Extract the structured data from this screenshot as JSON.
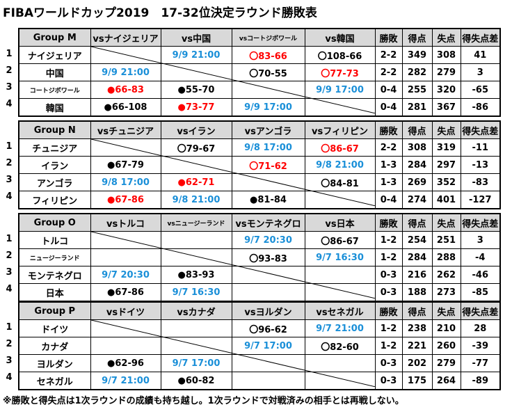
{
  "title": "FIBAワールドカップ2019　17-32位決定ラウンド勝敗表",
  "footer": "※勝敗と得失点は1次ラウンドの成績も持ち越し。1次ラウンドで対戦済みの相手とは再戦しない。",
  "colors": {
    "header_bg": "#d9d9d9",
    "scheduled": "#1a8fd8",
    "loss": "#ff0000",
    "win": "#000000"
  },
  "stat_headers": [
    "勝敗",
    "得点",
    "失点",
    "得失点差"
  ],
  "groups": [
    {
      "name": "Group M",
      "vs_headers": [
        "vsナイジェリア",
        "vs中国",
        "vsコートジボワール",
        "vs韓国"
      ],
      "rows": [
        {
          "rank": "1",
          "team": "ナイジェリア",
          "cells": [
            "",
            "9/9 21:00",
            "〇83-66",
            "〇108-66"
          ],
          "record": "2-2",
          "pf": "349",
          "pa": "308",
          "diff": "41"
        },
        {
          "rank": "2",
          "team": "中国",
          "cells": [
            "9/9 21:00",
            "",
            "〇70-55",
            "〇77-73"
          ],
          "record": "2-2",
          "pf": "282",
          "pa": "279",
          "diff": "3"
        },
        {
          "rank": "3",
          "team": "コートジボワール",
          "cells": [
            "●66-83",
            "●55-70",
            "",
            "9/9 17:00"
          ],
          "record": "0-4",
          "pf": "255",
          "pa": "320",
          "diff": "-65"
        },
        {
          "rank": "4",
          "team": "韓国",
          "cells": [
            "●66-108",
            "●73-77",
            "9/9 17:00",
            ""
          ],
          "record": "0-4",
          "pf": "281",
          "pa": "367",
          "diff": "-86"
        }
      ]
    },
    {
      "name": "Group N",
      "vs_headers": [
        "vsチュニジア",
        "vsイラン",
        "vsアンゴラ",
        "vsフィリピン"
      ],
      "rows": [
        {
          "rank": "1",
          "team": "チュニジア",
          "cells": [
            "",
            "〇79-67",
            "9/8 17:00",
            "〇86-67"
          ],
          "record": "2-2",
          "pf": "308",
          "pa": "319",
          "diff": "-11"
        },
        {
          "rank": "2",
          "team": "イラン",
          "cells": [
            "●67-79",
            "",
            "〇71-62",
            "9/8 21:00"
          ],
          "record": "1-3",
          "pf": "284",
          "pa": "297",
          "diff": "-13"
        },
        {
          "rank": "3",
          "team": "アンゴラ",
          "cells": [
            "9/8 17:00",
            "●62-71",
            "",
            "〇84-81"
          ],
          "record": "1-3",
          "pf": "269",
          "pa": "352",
          "diff": "-83"
        },
        {
          "rank": "4",
          "team": "フィリピン",
          "cells": [
            "●67-86",
            "9/8 21:00",
            "●81-84",
            ""
          ],
          "record": "0-4",
          "pf": "274",
          "pa": "401",
          "diff": "-127"
        }
      ]
    },
    {
      "name": "Group O",
      "vs_headers": [
        "vsトルコ",
        "vsニュージーランド",
        "vsモンテネグロ",
        "vs日本"
      ],
      "rows": [
        {
          "rank": "1",
          "team": "トルコ",
          "cells": [
            "",
            "",
            "9/7 20:30",
            "〇86-67"
          ],
          "record": "1-2",
          "pf": "254",
          "pa": "251",
          "diff": "3"
        },
        {
          "rank": "2",
          "team": "ニュージーランド",
          "cells": [
            "",
            "",
            "〇93-83",
            "9/7 16:30"
          ],
          "record": "1-2",
          "pf": "284",
          "pa": "288",
          "diff": "-4"
        },
        {
          "rank": "3",
          "team": "モンテネグロ",
          "cells": [
            "9/7 20:30",
            "●83-93",
            "",
            ""
          ],
          "record": "0-3",
          "pf": "216",
          "pa": "262",
          "diff": "-46"
        },
        {
          "rank": "4",
          "team": "日本",
          "cells": [
            "●67-86",
            "9/7 16:30",
            "",
            ""
          ],
          "record": "0-3",
          "pf": "188",
          "pa": "273",
          "diff": "-85"
        }
      ]
    },
    {
      "name": "Group P",
      "vs_headers": [
        "vsドイツ",
        "vsカナダ",
        "vsヨルダン",
        "vsセネガル"
      ],
      "rows": [
        {
          "rank": "1",
          "team": "ドイツ",
          "cells": [
            "",
            "",
            "〇96-62",
            "9/7 21:00"
          ],
          "record": "1-2",
          "pf": "238",
          "pa": "210",
          "diff": "28"
        },
        {
          "rank": "2",
          "team": "カナダ",
          "cells": [
            "",
            "",
            "9/7 17:00",
            "〇82-60"
          ],
          "record": "1-2",
          "pf": "221",
          "pa": "260",
          "diff": "-39"
        },
        {
          "rank": "3",
          "team": "ヨルダン",
          "cells": [
            "●62-96",
            "9/7 17:00",
            "",
            ""
          ],
          "record": "0-3",
          "pf": "202",
          "pa": "279",
          "diff": "-77"
        },
        {
          "rank": "4",
          "team": "セネガル",
          "cells": [
            "9/7 21:00",
            "●60-82",
            "",
            ""
          ],
          "record": "0-3",
          "pf": "175",
          "pa": "264",
          "diff": "-89"
        }
      ]
    }
  ]
}
